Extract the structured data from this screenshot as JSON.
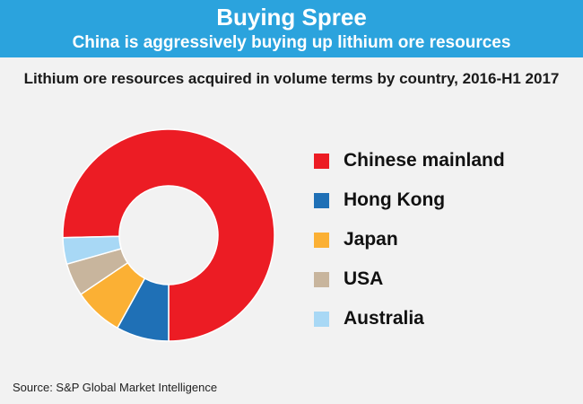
{
  "header": {
    "title": "Buying Spree",
    "subtitle": "China is aggressively buying up lithium ore resources"
  },
  "chart_data": {
    "type": "pie",
    "style": "donut",
    "title": "Lithium ore resources acquired in volume terms by country, 2016-H1 2017",
    "categories": [
      "Chinese mainland",
      "Hong Kong",
      "Japan",
      "USA",
      "Australia"
    ],
    "values": [
      75,
      8,
      7.5,
      5,
      4
    ],
    "colors": [
      "#ec1c24",
      "#1f70b6",
      "#fbb034",
      "#c8b59d",
      "#a8d8f5"
    ],
    "legend_position": "right"
  },
  "footer": {
    "source": "Source:  S&P Global Market Intelligence"
  }
}
